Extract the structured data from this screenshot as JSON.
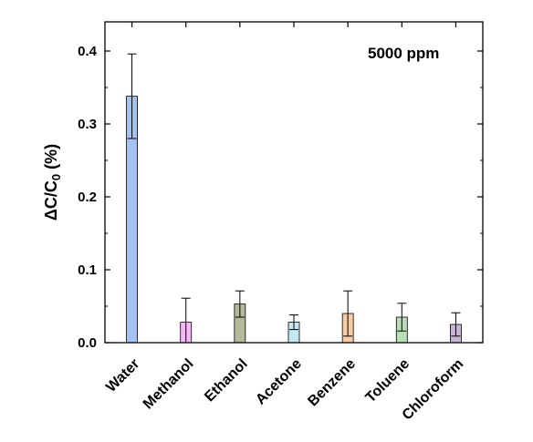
{
  "chart_data": {
    "type": "bar",
    "categories": [
      "Water",
      "Methanol",
      "Ethanol",
      "Acetone",
      "Benzene",
      "Toluene",
      "Chloroform"
    ],
    "values": [
      0.338,
      0.028,
      0.053,
      0.028,
      0.04,
      0.035,
      0.025
    ],
    "errors": [
      0.058,
      0.033,
      0.018,
      0.01,
      0.031,
      0.019,
      0.016
    ],
    "colors": [
      "#a4c2f4",
      "#f4b8f4",
      "#b5b99a",
      "#c4e8f0",
      "#f7cba6",
      "#b9e0b4",
      "#c5b7d3"
    ],
    "ylabel_main": "ΔC/C",
    "ylabel_sub": "0",
    "ylabel_unit": " (%)",
    "ylim": [
      0,
      0.44
    ],
    "yticks": [
      "0.0",
      "0.1",
      "0.2",
      "0.3",
      "0.4"
    ],
    "annotation": "5000 ppm",
    "grid": false
  }
}
